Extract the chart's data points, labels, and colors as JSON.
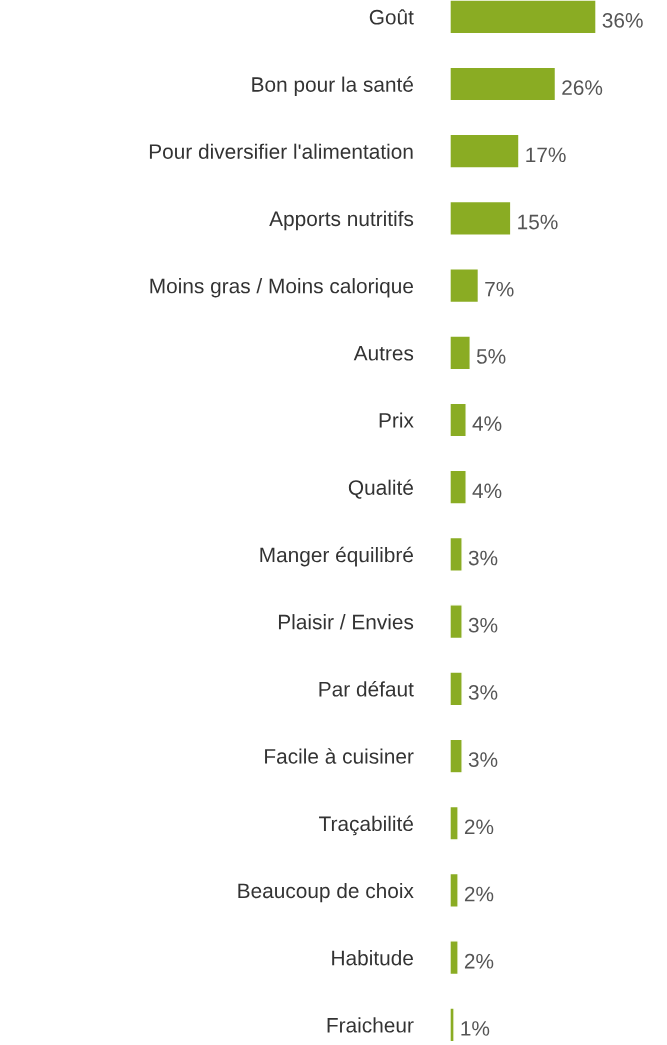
{
  "chart_data": {
    "type": "bar",
    "orientation": "horizontal",
    "categories": [
      "Goût",
      "Bon pour la santé",
      "Pour diversifier l'alimentation",
      "Apports nutritifs",
      "Moins gras / Moins calorique",
      "Autres",
      "Prix",
      "Qualité",
      "Manger équilibré",
      "Plaisir / Envies",
      "Par défaut",
      "Facile à cuisiner",
      "Traçabilité",
      "Beaucoup de choix",
      "Habitude",
      "Fraicheur"
    ],
    "values": [
      36,
      26,
      17,
      15,
      7,
      5,
      4,
      4,
      3,
      3,
      3,
      3,
      2,
      2,
      2,
      1
    ],
    "value_labels": [
      "36%",
      "26%",
      "17%",
      "15%",
      "7%",
      "5%",
      "4%",
      "4%",
      "3%",
      "3%",
      "3%",
      "3%",
      "2%",
      "2%",
      "2%",
      "1%"
    ],
    "color": "#8aac23",
    "grid": false,
    "legend": false
  }
}
